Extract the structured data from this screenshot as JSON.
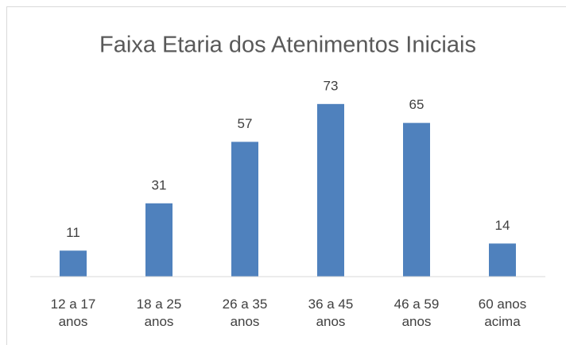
{
  "chart_data": {
    "type": "bar",
    "title": "Faixa Etaria dos Atenimentos Iniciais",
    "categories": [
      "12 a 17 anos",
      "18 a 25 anos",
      "26 a 35 anos",
      "36 a 45 anos",
      "46 a 59 anos",
      "60 anos acima"
    ],
    "values": [
      11,
      31,
      57,
      73,
      65,
      14
    ],
    "color": "#4f81bd",
    "ylim": [
      0,
      80
    ]
  }
}
